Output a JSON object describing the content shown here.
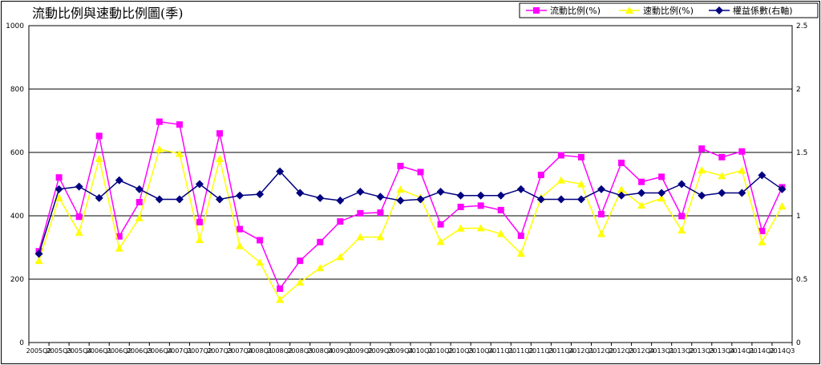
{
  "chart_data": {
    "type": "line",
    "title": "流動比例與速動比例圖(季)",
    "categories": [
      "2005Q2",
      "2005Q3",
      "2005Q4",
      "2006Q1",
      "2006Q2",
      "2006Q3",
      "2006Q4",
      "2007Q1",
      "2007Q2",
      "2007Q3",
      "2007Q4",
      "2008Q1",
      "2008Q2",
      "2008Q3",
      "2008Q4",
      "2009Q1",
      "2009Q2",
      "2009Q3",
      "2009Q4",
      "2010Q1",
      "2010Q2",
      "2010Q3",
      "2010Q4",
      "2011Q1",
      "2011Q2",
      "2011Q3",
      "2011Q4",
      "2012Q1",
      "2012Q2",
      "2012Q3",
      "2012Q4",
      "2013Q1",
      "2013Q2",
      "2013Q3",
      "2013Q4",
      "2014Q1",
      "2014Q2",
      "2014Q3"
    ],
    "left_axis": {
      "min": 0,
      "max": 1000,
      "ticks": [
        "0",
        "200",
        "400",
        "600",
        "800",
        "1000"
      ]
    },
    "right_axis": {
      "min": 0,
      "max": 2.5,
      "ticks": [
        "0",
        "0.5",
        "1",
        "1.5",
        "2",
        "2.5"
      ]
    },
    "grid": true,
    "legend_position": "top-right",
    "series": [
      {
        "name": "流動比例(%)",
        "axis": "left",
        "color": "#ff00ff",
        "marker": "square",
        "values": [
          288,
          521,
          397,
          652,
          335,
          443,
          697,
          688,
          380,
          660,
          358,
          323,
          170,
          258,
          317,
          382,
          408,
          410,
          557,
          538,
          373,
          428,
          432,
          418,
          337,
          529,
          591,
          585,
          405,
          567,
          507,
          523,
          399,
          612,
          585,
          603,
          352,
          490
        ]
      },
      {
        "name": "速動比例(%)",
        "axis": "left",
        "color": "#ffff00",
        "marker": "triangle",
        "values": [
          258,
          457,
          347,
          580,
          297,
          393,
          610,
          596,
          324,
          580,
          305,
          253,
          135,
          190,
          235,
          270,
          333,
          333,
          483,
          457,
          318,
          360,
          361,
          343,
          281,
          457,
          512,
          500,
          343,
          483,
          433,
          455,
          354,
          544,
          526,
          543,
          317,
          430
        ]
      },
      {
        "name": "權益係數(右軸)",
        "axis": "right",
        "color": "#000080",
        "marker": "diamond",
        "values": [
          0.7,
          1.21,
          1.23,
          1.14,
          1.28,
          1.21,
          1.13,
          1.13,
          1.25,
          1.13,
          1.16,
          1.17,
          1.35,
          1.18,
          1.14,
          1.12,
          1.19,
          1.15,
          1.12,
          1.13,
          1.19,
          1.16,
          1.16,
          1.16,
          1.21,
          1.13,
          1.13,
          1.13,
          1.21,
          1.16,
          1.18,
          1.18,
          1.25,
          1.16,
          1.18,
          1.18,
          1.32,
          1.21
        ]
      }
    ]
  }
}
